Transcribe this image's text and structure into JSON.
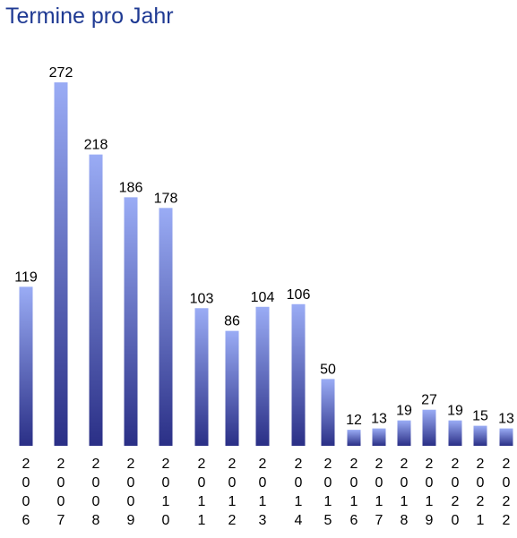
{
  "title": "Termine pro Jahr",
  "colors": {
    "title": "#1f3a93",
    "bar_top": "#9aacf5",
    "bar_bottom": "#2a2f86"
  },
  "chart_data": {
    "type": "bar",
    "title": "Termine pro Jahr",
    "xlabel": "",
    "ylabel": "",
    "categories": [
      "2006",
      "2007",
      "2008",
      "2009",
      "2010",
      "2011",
      "2012",
      "2013",
      "2014",
      "2015",
      "2016",
      "2017",
      "2018",
      "2019",
      "2020",
      "2021",
      "2022"
    ],
    "values": [
      119,
      272,
      218,
      186,
      178,
      103,
      86,
      104,
      106,
      50,
      12,
      13,
      19,
      27,
      19,
      15,
      13
    ],
    "ylim": [
      0,
      272
    ],
    "grid": false,
    "legend": "none"
  }
}
